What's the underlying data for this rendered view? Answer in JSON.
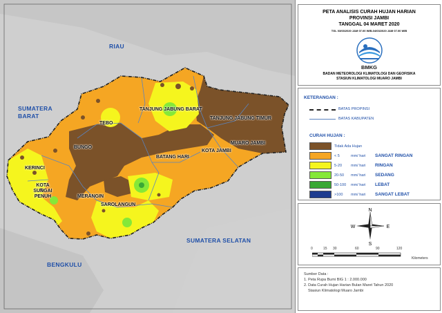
{
  "map": {
    "regions": [
      {
        "name": "RIAU"
      },
      {
        "name": "SUMATERA BARAT"
      },
      {
        "name": "SUMATERA SELATAN"
      },
      {
        "name": "BENGKULU"
      }
    ],
    "kabupaten": [
      {
        "name": "TANJUNG JABUNG BARAT"
      },
      {
        "name": "TANJUNG JABUNG TIMUR"
      },
      {
        "name": "TEBO"
      },
      {
        "name": "BUNGO"
      },
      {
        "name": "MUARO JAMBI"
      },
      {
        "name": "KOTA JAMBI"
      },
      {
        "name": "BATANG HARI"
      },
      {
        "name": "KERINCI"
      },
      {
        "name": "KOTA SUNGAI PENUH"
      },
      {
        "name": "MERANGIN"
      },
      {
        "name": "SAROLANGUN"
      }
    ],
    "colors": {
      "land_outside": "#c8c8c8",
      "sea": "#d4d4d4",
      "no_rain": "#7b5229",
      "lt5": "#f5a623",
      "5_20": "#f5f51e",
      "20_50": "#85e838",
      "50_100": "#3aa835",
      "gt100": "#1f3c8f",
      "province_border": "#222222",
      "kab_border": "#5a84c0"
    }
  },
  "title": {
    "line1": "PETA ANALISIS CURAH HUJAN HARIAN",
    "line2": "PROVINSI JAMBI",
    "line3": "TANGGAL 04 MARET 2020",
    "line4": "TGL 03/03/2020 JAM 07.00 WIB-04/03/2020 JAM 07.00 WIB",
    "logo_text": "BMKG",
    "inst1": "BADAN METEOROLOGI KLIMATOLOGI DAN GEOFISIKA",
    "inst2": "STASIUN KLIMATOLOGI MUARO JAMBI"
  },
  "keterangan": {
    "title": "KETERANGAN :",
    "batas_provinsi": "BATAS PROPINSI",
    "batas_kabupaten": "BATAS KABUPATEN",
    "curah_hujan_title": "CURAH HUJAN :",
    "classes": [
      {
        "range": "Tidak Ada Hujan",
        "unit": "",
        "category": "",
        "color": "#7b5229"
      },
      {
        "range": "< 5",
        "unit": "mm/ hari",
        "category": "SANGAT RINGAN",
        "color": "#f5a623"
      },
      {
        "range": "5-20",
        "unit": "mm/ hari",
        "category": "RINGAN",
        "color": "#f5f51e"
      },
      {
        "range": "20-50",
        "unit": "mm/ hari",
        "category": "SEDANG",
        "color": "#85e838"
      },
      {
        "range": "50-100",
        "unit": "mm/ hari",
        "category": "LEBAT",
        "color": "#3aa835"
      },
      {
        "range": ">100",
        "unit": "mm/ hari",
        "category": "SANGAT LEBAT",
        "color": "#1f3c8f"
      }
    ]
  },
  "compass": {
    "n": "N",
    "s": "S",
    "e": "E",
    "w": "W"
  },
  "scale": {
    "ticks": [
      "0",
      "15",
      "30",
      "60",
      "90",
      "120"
    ],
    "unit": "Kilometers"
  },
  "source": {
    "title": "Sumber Data :",
    "items": [
      "1. Peta Rupa Bumi BIG 1 : 2.000.000",
      "2. Data Curah Hujan Harian Bulan Maret Tahun 2020",
      "Stasiun Klimatologi Muaro Jambi"
    ]
  }
}
